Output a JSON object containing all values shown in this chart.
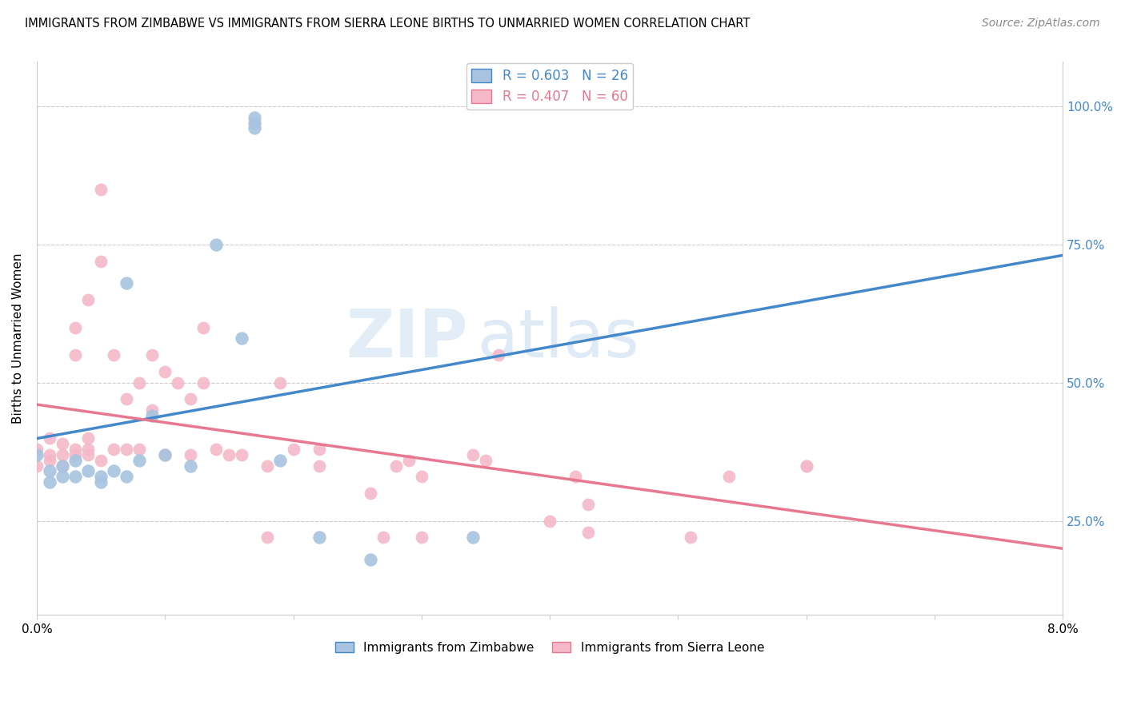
{
  "title": "IMMIGRANTS FROM ZIMBABWE VS IMMIGRANTS FROM SIERRA LEONE BIRTHS TO UNMARRIED WOMEN CORRELATION CHART",
  "source": "Source: ZipAtlas.com",
  "ylabel": "Births to Unmarried Women",
  "ytick_labels": [
    "25.0%",
    "50.0%",
    "75.0%",
    "100.0%"
  ],
  "ytick_values": [
    0.25,
    0.5,
    0.75,
    1.0
  ],
  "xmin": 0.0,
  "xmax": 0.08,
  "ymin": 0.08,
  "ymax": 1.08,
  "legend_r_blue": "R = 0.603",
  "legend_n_blue": "N = 26",
  "legend_r_pink": "R = 0.407",
  "legend_n_pink": "N = 60",
  "color_blue": "#a8c4e0",
  "color_pink": "#f4b8c8",
  "line_blue": "#4488cc",
  "line_pink": "#e87890",
  "watermark_zip": "ZIP",
  "watermark_atlas": "atlas",
  "blue_x": [
    0.0,
    0.001,
    0.001,
    0.002,
    0.002,
    0.003,
    0.003,
    0.004,
    0.005,
    0.005,
    0.006,
    0.007,
    0.007,
    0.008,
    0.009,
    0.01,
    0.012,
    0.014,
    0.016,
    0.017,
    0.019,
    0.022,
    0.026,
    0.034,
    0.017,
    0.017
  ],
  "blue_y": [
    0.37,
    0.34,
    0.32,
    0.35,
    0.33,
    0.36,
    0.33,
    0.34,
    0.33,
    0.32,
    0.34,
    0.33,
    0.68,
    0.36,
    0.44,
    0.37,
    0.35,
    0.75,
    0.58,
    0.97,
    0.36,
    0.22,
    0.18,
    0.22,
    0.96,
    0.98
  ],
  "pink_x": [
    0.0,
    0.0,
    0.001,
    0.001,
    0.001,
    0.002,
    0.002,
    0.002,
    0.003,
    0.003,
    0.003,
    0.003,
    0.004,
    0.004,
    0.004,
    0.004,
    0.005,
    0.005,
    0.005,
    0.006,
    0.006,
    0.007,
    0.007,
    0.008,
    0.008,
    0.009,
    0.009,
    0.01,
    0.01,
    0.011,
    0.012,
    0.012,
    0.013,
    0.013,
    0.014,
    0.015,
    0.016,
    0.018,
    0.018,
    0.019,
    0.02,
    0.022,
    0.022,
    0.026,
    0.027,
    0.028,
    0.029,
    0.03,
    0.03,
    0.034,
    0.035,
    0.036,
    0.04,
    0.042,
    0.043,
    0.043,
    0.051,
    0.054,
    0.06,
    0.06
  ],
  "pink_y": [
    0.38,
    0.35,
    0.36,
    0.37,
    0.4,
    0.37,
    0.35,
    0.39,
    0.37,
    0.38,
    0.55,
    0.6,
    0.4,
    0.38,
    0.37,
    0.65,
    0.72,
    0.36,
    0.85,
    0.55,
    0.38,
    0.47,
    0.38,
    0.5,
    0.38,
    0.55,
    0.45,
    0.37,
    0.52,
    0.5,
    0.47,
    0.37,
    0.5,
    0.6,
    0.38,
    0.37,
    0.37,
    0.35,
    0.22,
    0.5,
    0.38,
    0.35,
    0.38,
    0.3,
    0.22,
    0.35,
    0.36,
    0.22,
    0.33,
    0.37,
    0.36,
    0.55,
    0.25,
    0.33,
    0.23,
    0.28,
    0.22,
    0.33,
    0.35,
    0.35
  ]
}
